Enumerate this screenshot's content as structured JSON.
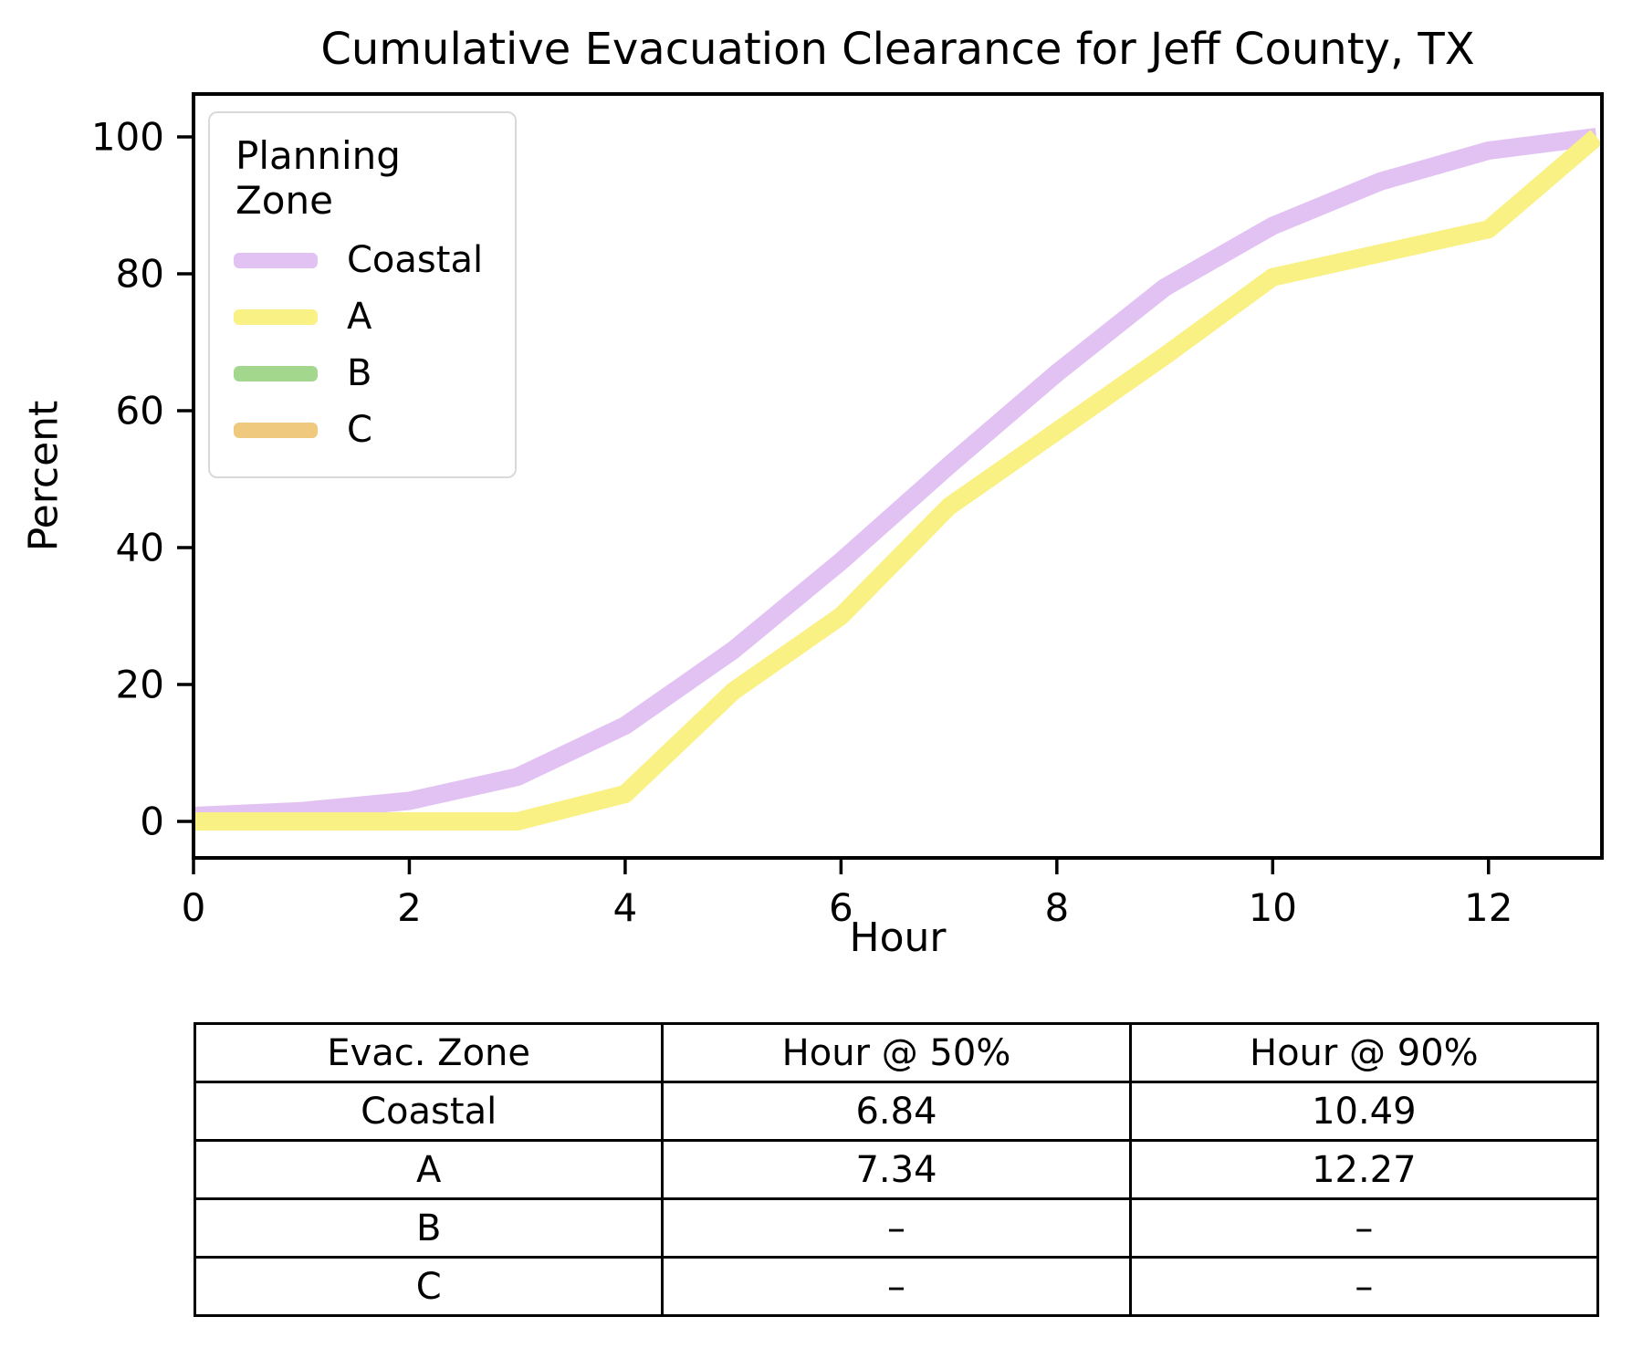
{
  "chart_data": {
    "type": "line",
    "title": "Cumulative Evacuation Clearance for Jeff County, TX",
    "xlabel": "Hour",
    "ylabel": "Percent",
    "x": [
      0,
      1,
      2,
      3,
      4,
      5,
      6,
      7,
      8,
      9,
      10,
      11,
      12,
      13
    ],
    "x_ticks": [
      0,
      2,
      4,
      6,
      8,
      10,
      12
    ],
    "y_ticks": [
      0,
      20,
      40,
      60,
      80,
      100
    ],
    "xlim": [
      0,
      13.05
    ],
    "ylim": [
      -5.3,
      106.3
    ],
    "grid": false,
    "legend": {
      "title": "Planning Zone",
      "position": "upper left"
    },
    "series": [
      {
        "name": "Coastal",
        "color": "#e2c2f3",
        "values": [
          0.8,
          1.5,
          3,
          6.5,
          14,
          25,
          38,
          52,
          65.5,
          78,
          87,
          93.5,
          98,
          100
        ]
      },
      {
        "name": "A",
        "color": "#faf185",
        "values": [
          0,
          0,
          0,
          0,
          4,
          19,
          30,
          46,
          57,
          68,
          79.5,
          83,
          86.5,
          100
        ]
      },
      {
        "name": "B",
        "color": "#a3d78e",
        "values": null
      },
      {
        "name": "C",
        "color": "#eec97e",
        "values": null
      }
    ]
  },
  "table": {
    "headers": [
      "Evac. Zone",
      "Hour @ 50%",
      "Hour @ 90%"
    ],
    "rows": [
      [
        "Coastal",
        "6.84",
        "10.49"
      ],
      [
        "A",
        "7.34",
        "12.27"
      ],
      [
        "B",
        "–",
        "–"
      ],
      [
        "C",
        "–",
        "–"
      ]
    ]
  }
}
